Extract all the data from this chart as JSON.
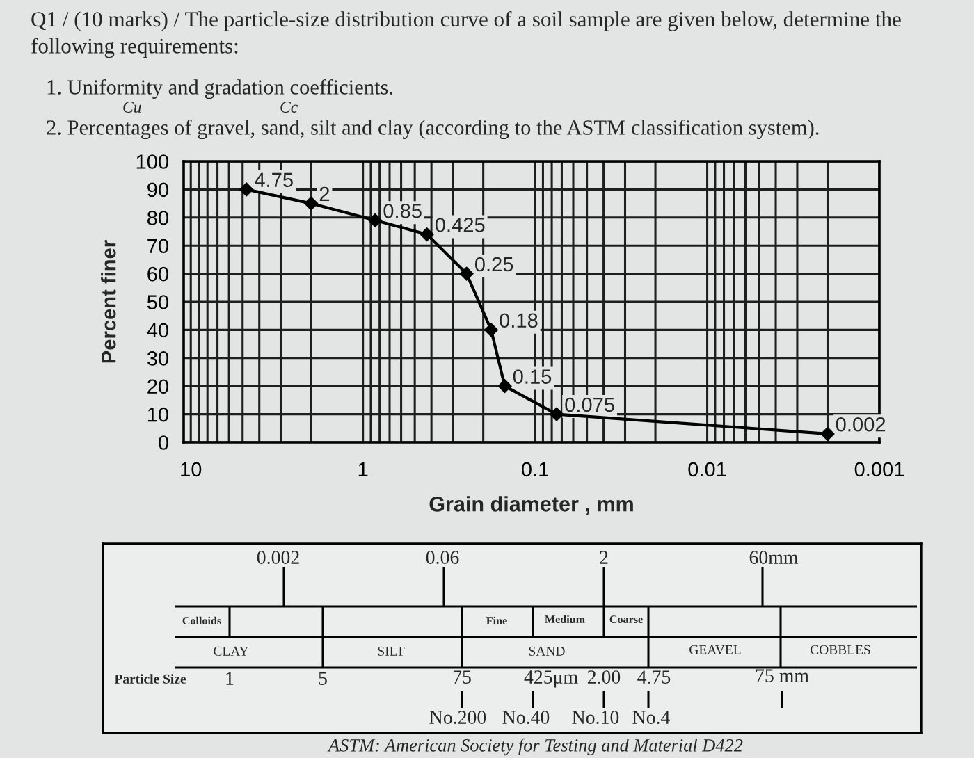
{
  "chart_data": [
    {
      "type": "line",
      "title": "Q1 / (10 marks) / The particle-size distribution curve of a soil sample are given below, determine the following requirements:",
      "annotations": [
        "1. Uniformity and gradation coefficients.",
        "Cu",
        "Cc",
        "2. Percentages of gravel, sand, silt and clay (according to the ASTM classification system).",
        {
          "text": "4.75",
          "x": 4.75,
          "y": 90
        },
        {
          "text": "2",
          "x": 2,
          "y": 85
        },
        {
          "text": "0.85",
          "x": 0.85,
          "y": 79
        },
        {
          "text": "0.425",
          "x": 0.425,
          "y": 74
        },
        {
          "text": "0.25",
          "x": 0.25,
          "y": 60
        },
        {
          "text": "0.18",
          "x": 0.18,
          "y": 40
        },
        {
          "text": "0.15",
          "x": 0.15,
          "y": 20
        },
        {
          "text": "0.075",
          "x": 0.075,
          "y": 10
        },
        {
          "text": "0.002",
          "x": 0.002,
          "y": 3
        }
      ],
      "xlabel": "Grain diameter , mm",
      "ylabel": "Percent finer",
      "x": [
        4.75,
        2,
        0.85,
        0.425,
        0.25,
        0.18,
        0.15,
        0.075,
        0.002
      ],
      "series": [
        {
          "color": "#000000",
          "values": [
            90,
            85,
            79,
            74,
            60,
            40,
            20,
            10,
            3
          ]
        }
      ],
      "marker": "diamond",
      "line_style": "solid",
      "log": "x",
      "grid": true,
      "xlim": [
        11,
        0.001
      ],
      "xticks": [
        10,
        {
          "value": 9,
          "label": null
        },
        {
          "value": 8,
          "label": null
        },
        {
          "value": 7,
          "label": null
        },
        {
          "value": 6,
          "label": null
        },
        {
          "value": 5,
          "label": null
        },
        {
          "value": 4,
          "label": null
        },
        {
          "value": 3,
          "label": null
        },
        {
          "value": 2,
          "label": null
        },
        1,
        {
          "value": 0.9,
          "label": null
        },
        {
          "value": 0.8,
          "label": null
        },
        {
          "value": 0.7,
          "label": null
        },
        {
          "value": 0.6,
          "label": null
        },
        {
          "value": 0.5,
          "label": null
        },
        {
          "value": 0.4,
          "label": null
        },
        {
          "value": 0.3,
          "label": null
        },
        {
          "value": 0.2,
          "label": null
        },
        0.1,
        {
          "value": 0.09,
          "label": null
        },
        {
          "value": 0.08,
          "label": null
        },
        {
          "value": 0.07,
          "label": null
        },
        {
          "value": 0.06,
          "label": null
        },
        {
          "value": 0.05,
          "label": null
        },
        {
          "value": 0.04,
          "label": null
        },
        {
          "value": 0.03,
          "label": null
        },
        {
          "value": 0.02,
          "label": null
        },
        0.01,
        {
          "value": 0.009,
          "label": null
        },
        {
          "value": 0.008,
          "label": null
        },
        {
          "value": 0.007,
          "label": null
        },
        {
          "value": 0.006,
          "label": null
        },
        {
          "value": 0.005,
          "label": null
        },
        {
          "value": 0.004,
          "label": null
        },
        {
          "value": 0.003,
          "label": null
        },
        {
          "value": 0.002,
          "label": null
        },
        0.001
      ],
      "ylim": [
        0,
        100
      ],
      "yticks": [
        0,
        10,
        20,
        30,
        40,
        50,
        60,
        70,
        80,
        90,
        100
      ]
    },
    {
      "type": "other",
      "annotations": [
        "0.002",
        "0.06",
        "2",
        "60mm",
        "Colloids",
        "Fine",
        "Medium",
        "Coarse",
        "CLAY",
        "SILT",
        "SAND",
        "GEAVEL",
        "COBBLES",
        "Particle Size",
        "1",
        "5",
        "75",
        "425μm",
        "2.00",
        "4.75",
        "75 mm",
        "No.200",
        "No.40",
        "No.10",
        "No.4",
        "ASTM: American Society for Testing and Material D422"
      ]
    }
  ]
}
